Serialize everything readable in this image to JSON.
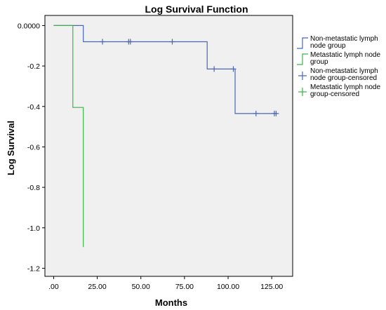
{
  "chart_data": {
    "type": "line",
    "subtype": "step",
    "title": "Log Survival Function",
    "xlabel": "Months",
    "ylabel": "Log Survival",
    "xlim": [
      -5,
      137
    ],
    "ylim": [
      -1.24,
      0.05
    ],
    "x_ticks": [
      0,
      25,
      50,
      75,
      100,
      125
    ],
    "x_tick_labels": [
      ".00",
      "25.00",
      "50.00",
      "75.00",
      "100.00",
      "125.00"
    ],
    "y_ticks": [
      0,
      -0.2,
      -0.4,
      -0.6,
      -0.8,
      -1.0,
      -1.2
    ],
    "y_tick_labels": [
      "0.0000",
      "-0.2",
      "-0.4",
      "-0.6",
      "-0.8",
      "-1.0",
      "-1.2"
    ],
    "grid": false,
    "plot_background": "#f0f0f0",
    "legend_position": "right",
    "series": [
      {
        "name": "Non-metastatic lymph node group",
        "color": "#4a67b4",
        "steps": [
          {
            "x": 0,
            "y": 0
          },
          {
            "x": 17,
            "y": 0
          },
          {
            "x": 17,
            "y": -0.08
          },
          {
            "x": 88,
            "y": -0.08
          },
          {
            "x": 88,
            "y": -0.215
          },
          {
            "x": 104,
            "y": -0.215
          },
          {
            "x": 104,
            "y": -0.435
          },
          {
            "x": 128,
            "y": -0.435
          }
        ]
      },
      {
        "name": "Metastatic lymph node group",
        "color": "#3cb34a",
        "steps": [
          {
            "x": 0,
            "y": 0
          },
          {
            "x": 11,
            "y": 0
          },
          {
            "x": 11,
            "y": -0.405
          },
          {
            "x": 17,
            "y": -0.405
          },
          {
            "x": 17,
            "y": -1.095
          }
        ]
      }
    ],
    "censored": [
      {
        "name": "Non-metastatic lymph node group-censored",
        "color": "#4a67b4",
        "points": [
          {
            "x": 28,
            "y": -0.08
          },
          {
            "x": 43,
            "y": -0.08
          },
          {
            "x": 44,
            "y": -0.08
          },
          {
            "x": 68,
            "y": -0.08
          },
          {
            "x": 92,
            "y": -0.215
          },
          {
            "x": 103,
            "y": -0.215
          },
          {
            "x": 116,
            "y": -0.435
          },
          {
            "x": 126.5,
            "y": -0.435
          },
          {
            "x": 127.5,
            "y": -0.435
          }
        ]
      },
      {
        "name": "Metastatic lymph node group-censored",
        "color": "#3cb34a",
        "points": []
      }
    ],
    "legend": [
      {
        "label_lines": [
          "Non-metastatic lymph",
          "node group"
        ],
        "color": "#4a67b4",
        "marker": "line"
      },
      {
        "label_lines": [
          "Metastatic lymph node",
          "group"
        ],
        "color": "#3cb34a",
        "marker": "line"
      },
      {
        "label_lines": [
          "Non-metastatic lymph",
          "node group-censored"
        ],
        "color": "#4a67b4",
        "marker": "cross"
      },
      {
        "label_lines": [
          "Metastatic lymph node",
          "group-censored"
        ],
        "color": "#3cb34a",
        "marker": "cross"
      }
    ]
  }
}
